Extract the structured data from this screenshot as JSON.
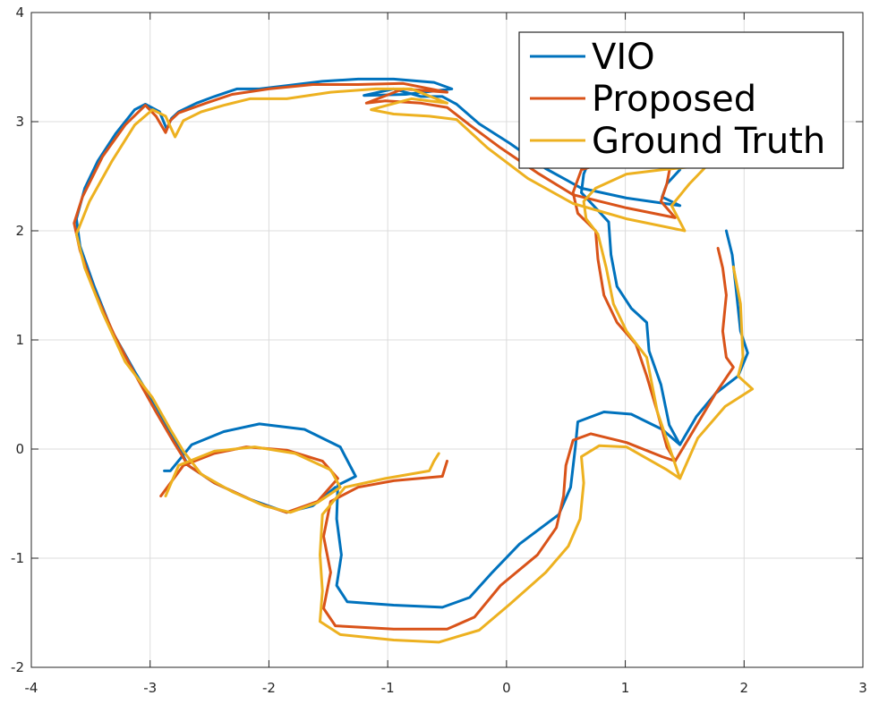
{
  "chart_data": {
    "type": "line",
    "title": "",
    "xlabel": "",
    "ylabel": "",
    "xlim": [
      -4,
      3
    ],
    "ylim": [
      -2,
      4
    ],
    "xticks": [
      "-4",
      "-3",
      "-2",
      "-1",
      "0",
      "1",
      "2",
      "3"
    ],
    "yticks": [
      "-2",
      "-1",
      "0",
      "1",
      "2",
      "3",
      "4"
    ],
    "grid": true,
    "legend_position": "top-right",
    "series": [
      {
        "name": "VIO",
        "color": "#0072BD",
        "segments": [
          [
            [
              1.85,
              2.0
            ],
            [
              1.9,
              1.78
            ],
            [
              1.93,
              1.49
            ],
            [
              1.97,
              1.08
            ],
            [
              2.03,
              0.88
            ],
            [
              1.95,
              0.67
            ],
            [
              1.76,
              0.51
            ],
            [
              1.6,
              0.3
            ],
            [
              1.46,
              0.04
            ],
            [
              1.31,
              0.18
            ],
            [
              1.05,
              0.32
            ],
            [
              0.82,
              0.34
            ],
            [
              0.6,
              0.25
            ],
            [
              0.58,
              0.02
            ],
            [
              0.54,
              -0.35
            ],
            [
              0.44,
              -0.6
            ],
            [
              0.11,
              -0.87
            ],
            [
              -0.12,
              -1.13
            ],
            [
              -0.31,
              -1.36
            ],
            [
              -0.54,
              -1.45
            ],
            [
              -0.95,
              -1.43
            ],
            [
              -1.34,
              -1.4
            ],
            [
              -1.43,
              -1.25
            ],
            [
              -1.39,
              -0.97
            ],
            [
              -1.43,
              -0.64
            ],
            [
              -1.42,
              -0.33
            ],
            [
              -1.27,
              -0.25
            ],
            [
              -1.4,
              0.02
            ],
            [
              -1.7,
              0.18
            ],
            [
              -2.08,
              0.23
            ],
            [
              -2.38,
              0.16
            ],
            [
              -2.65,
              0.04
            ],
            [
              -2.83,
              -0.2
            ],
            [
              -2.88,
              -0.2
            ]
          ],
          [
            [
              1.46,
              0.04
            ],
            [
              1.37,
              0.22
            ],
            [
              1.3,
              0.59
            ],
            [
              1.2,
              0.9
            ],
            [
              1.18,
              1.16
            ],
            [
              1.05,
              1.29
            ],
            [
              0.93,
              1.49
            ],
            [
              0.88,
              1.78
            ],
            [
              0.86,
              2.08
            ],
            [
              0.75,
              2.21
            ],
            [
              0.63,
              2.35
            ],
            [
              0.65,
              2.52
            ],
            [
              0.71,
              2.68
            ],
            [
              1.01,
              2.72
            ],
            [
              1.39,
              2.7
            ],
            [
              1.46,
              2.56
            ],
            [
              1.35,
              2.43
            ],
            [
              1.31,
              2.31
            ],
            [
              1.46,
              2.23
            ],
            [
              1.01,
              2.3
            ],
            [
              0.63,
              2.39
            ],
            [
              0.33,
              2.57
            ],
            [
              0.03,
              2.8
            ],
            [
              -0.23,
              2.98
            ],
            [
              -0.42,
              3.16
            ],
            [
              -0.54,
              3.23
            ],
            [
              -0.72,
              3.23
            ],
            [
              -0.95,
              3.3
            ],
            [
              -1.2,
              3.24
            ],
            [
              -0.85,
              3.25
            ],
            [
              -0.46,
              3.3
            ],
            [
              -0.61,
              3.36
            ],
            [
              -0.95,
              3.39
            ],
            [
              -1.25,
              3.39
            ],
            [
              -1.55,
              3.37
            ],
            [
              -1.85,
              3.33
            ],
            [
              -2.08,
              3.3
            ],
            [
              -2.27,
              3.3
            ],
            [
              -2.46,
              3.23
            ],
            [
              -2.61,
              3.17
            ],
            [
              -2.76,
              3.09
            ],
            [
              -2.82,
              3.03
            ],
            [
              -2.86,
              2.93
            ],
            [
              -2.92,
              3.09
            ],
            [
              -3.04,
              3.16
            ],
            [
              -3.13,
              3.11
            ],
            [
              -3.29,
              2.89
            ],
            [
              -3.44,
              2.64
            ],
            [
              -3.55,
              2.39
            ],
            [
              -3.62,
              2.11
            ],
            [
              -3.59,
              1.86
            ],
            [
              -3.47,
              1.49
            ],
            [
              -3.32,
              1.08
            ],
            [
              -3.13,
              0.71
            ],
            [
              -2.95,
              0.39
            ],
            [
              -2.8,
              0.1
            ],
            [
              -2.68,
              -0.15
            ],
            [
              -2.46,
              -0.31
            ],
            [
              -2.16,
              -0.46
            ],
            [
              -1.85,
              -0.58
            ],
            [
              -1.63,
              -0.52
            ],
            [
              -1.44,
              -0.35
            ]
          ]
        ]
      },
      {
        "name": "Proposed",
        "color": "#D95319",
        "segments": [
          [
            [
              1.78,
              1.84
            ],
            [
              1.82,
              1.66
            ],
            [
              1.85,
              1.41
            ],
            [
              1.82,
              1.08
            ],
            [
              1.85,
              0.84
            ],
            [
              1.91,
              0.75
            ],
            [
              1.76,
              0.51
            ],
            [
              1.58,
              0.18
            ],
            [
              1.42,
              -0.11
            ],
            [
              1.31,
              -0.07
            ],
            [
              1.01,
              0.06
            ],
            [
              0.71,
              0.14
            ],
            [
              0.56,
              0.08
            ],
            [
              0.5,
              -0.15
            ],
            [
              0.48,
              -0.43
            ],
            [
              0.42,
              -0.72
            ],
            [
              0.26,
              -0.97
            ],
            [
              -0.05,
              -1.25
            ],
            [
              -0.27,
              -1.54
            ],
            [
              -0.5,
              -1.65
            ],
            [
              -0.95,
              -1.65
            ],
            [
              -1.44,
              -1.62
            ],
            [
              -1.54,
              -1.46
            ],
            [
              -1.48,
              -1.13
            ],
            [
              -1.54,
              -0.8
            ],
            [
              -1.48,
              -0.48
            ],
            [
              -1.25,
              -0.35
            ],
            [
              -0.95,
              -0.29
            ],
            [
              -0.54,
              -0.25
            ],
            [
              -0.5,
              -0.11
            ]
          ],
          [
            [
              1.42,
              -0.11
            ],
            [
              1.35,
              0.02
            ],
            [
              1.27,
              0.34
            ],
            [
              1.18,
              0.67
            ],
            [
              1.09,
              0.96
            ],
            [
              0.93,
              1.16
            ],
            [
              0.82,
              1.41
            ],
            [
              0.77,
              1.74
            ],
            [
              0.75,
              2.0
            ],
            [
              0.6,
              2.16
            ],
            [
              0.56,
              2.35
            ],
            [
              0.63,
              2.56
            ],
            [
              1.01,
              2.68
            ],
            [
              1.39,
              2.66
            ],
            [
              1.35,
              2.43
            ],
            [
              1.3,
              2.27
            ],
            [
              1.42,
              2.12
            ],
            [
              1.01,
              2.21
            ],
            [
              0.56,
              2.33
            ],
            [
              0.26,
              2.53
            ],
            [
              -0.05,
              2.76
            ],
            [
              -0.31,
              2.97
            ],
            [
              -0.5,
              3.13
            ],
            [
              -0.72,
              3.17
            ],
            [
              -1.02,
              3.19
            ],
            [
              -1.18,
              3.17
            ],
            [
              -0.87,
              3.3
            ],
            [
              -0.5,
              3.27
            ],
            [
              -0.87,
              3.35
            ],
            [
              -1.25,
              3.34
            ],
            [
              -1.63,
              3.34
            ],
            [
              -2.0,
              3.3
            ],
            [
              -2.31,
              3.25
            ],
            [
              -2.53,
              3.17
            ],
            [
              -2.76,
              3.08
            ],
            [
              -2.83,
              3.01
            ],
            [
              -2.87,
              2.9
            ],
            [
              -2.95,
              3.05
            ],
            [
              -3.04,
              3.15
            ],
            [
              -3.21,
              2.97
            ],
            [
              -3.4,
              2.68
            ],
            [
              -3.57,
              2.31
            ],
            [
              -3.64,
              2.07
            ],
            [
              -3.59,
              1.82
            ],
            [
              -3.47,
              1.45
            ],
            [
              -3.3,
              1.04
            ],
            [
              -3.13,
              0.69
            ],
            [
              -2.95,
              0.34
            ],
            [
              -2.8,
              0.06
            ],
            [
              -2.68,
              -0.15
            ],
            [
              -2.46,
              -0.31
            ],
            [
              -2.08,
              -0.5
            ],
            [
              -1.85,
              -0.58
            ],
            [
              -1.59,
              -0.48
            ],
            [
              -1.42,
              -0.27
            ],
            [
              -1.55,
              -0.11
            ],
            [
              -1.85,
              -0.01
            ],
            [
              -2.19,
              0.02
            ],
            [
              -2.46,
              -0.04
            ],
            [
              -2.72,
              -0.15
            ],
            [
              -2.91,
              -0.43
            ]
          ]
        ]
      },
      {
        "name": "Ground Truth",
        "color": "#EDB120",
        "segments": [
          [
            [
              1.91,
              1.67
            ],
            [
              1.97,
              1.33
            ],
            [
              1.99,
              0.84
            ],
            [
              1.95,
              0.67
            ],
            [
              2.07,
              0.55
            ],
            [
              1.84,
              0.39
            ],
            [
              1.61,
              0.1
            ],
            [
              1.46,
              -0.27
            ],
            [
              1.35,
              -0.19
            ],
            [
              1.01,
              0.02
            ],
            [
              0.78,
              0.03
            ],
            [
              0.63,
              -0.07
            ],
            [
              0.65,
              -0.31
            ],
            [
              0.62,
              -0.64
            ],
            [
              0.52,
              -0.89
            ],
            [
              0.33,
              -1.13
            ],
            [
              0.03,
              -1.42
            ],
            [
              -0.23,
              -1.66
            ],
            [
              -0.57,
              -1.77
            ],
            [
              -0.95,
              -1.75
            ],
            [
              -1.4,
              -1.7
            ],
            [
              -1.57,
              -1.58
            ],
            [
              -1.55,
              -1.3
            ],
            [
              -1.57,
              -0.97
            ],
            [
              -1.55,
              -0.6
            ],
            [
              -1.36,
              -0.35
            ],
            [
              -1.02,
              -0.27
            ],
            [
              -0.65,
              -0.2
            ],
            [
              -0.61,
              -0.11
            ],
            [
              -0.57,
              -0.04
            ]
          ],
          [
            [
              1.46,
              -0.27
            ],
            [
              1.37,
              0.02
            ],
            [
              1.27,
              0.34
            ],
            [
              1.18,
              0.84
            ],
            [
              1.01,
              1.08
            ],
            [
              0.9,
              1.33
            ],
            [
              0.84,
              1.66
            ],
            [
              0.77,
              1.97
            ],
            [
              0.67,
              2.11
            ],
            [
              0.65,
              2.27
            ],
            [
              0.75,
              2.39
            ],
            [
              1.01,
              2.52
            ],
            [
              1.31,
              2.56
            ],
            [
              1.69,
              2.6
            ],
            [
              1.54,
              2.43
            ],
            [
              1.39,
              2.23
            ],
            [
              1.5,
              2.0
            ],
            [
              1.01,
              2.11
            ],
            [
              0.56,
              2.25
            ],
            [
              0.18,
              2.48
            ],
            [
              -0.16,
              2.76
            ],
            [
              -0.42,
              3.02
            ],
            [
              -0.65,
              3.05
            ],
            [
              -0.95,
              3.07
            ],
            [
              -1.14,
              3.11
            ],
            [
              -0.8,
              3.21
            ],
            [
              -0.5,
              3.17
            ],
            [
              -0.8,
              3.3
            ],
            [
              -1.1,
              3.3
            ],
            [
              -1.48,
              3.27
            ],
            [
              -1.85,
              3.21
            ],
            [
              -2.16,
              3.21
            ],
            [
              -2.38,
              3.15
            ],
            [
              -2.57,
              3.09
            ],
            [
              -2.72,
              3.01
            ],
            [
              -2.79,
              2.86
            ],
            [
              -2.87,
              3.05
            ],
            [
              -2.98,
              3.11
            ],
            [
              -3.13,
              2.97
            ],
            [
              -3.32,
              2.64
            ],
            [
              -3.51,
              2.27
            ],
            [
              -3.62,
              1.97
            ],
            [
              -3.55,
              1.66
            ],
            [
              -3.4,
              1.25
            ],
            [
              -3.21,
              0.8
            ],
            [
              -2.98,
              0.47
            ],
            [
              -2.83,
              0.18
            ],
            [
              -2.72,
              -0.02
            ],
            [
              -2.57,
              -0.23
            ],
            [
              -2.31,
              -0.39
            ],
            [
              -2.04,
              -0.52
            ],
            [
              -1.82,
              -0.58
            ],
            [
              -1.59,
              -0.49
            ],
            [
              -1.4,
              -0.35
            ],
            [
              -1.48,
              -0.19
            ],
            [
              -1.78,
              -0.04
            ],
            [
              -2.12,
              0.02
            ],
            [
              -2.46,
              -0.02
            ],
            [
              -2.76,
              -0.15
            ],
            [
              -2.87,
              -0.43
            ]
          ]
        ]
      }
    ]
  }
}
